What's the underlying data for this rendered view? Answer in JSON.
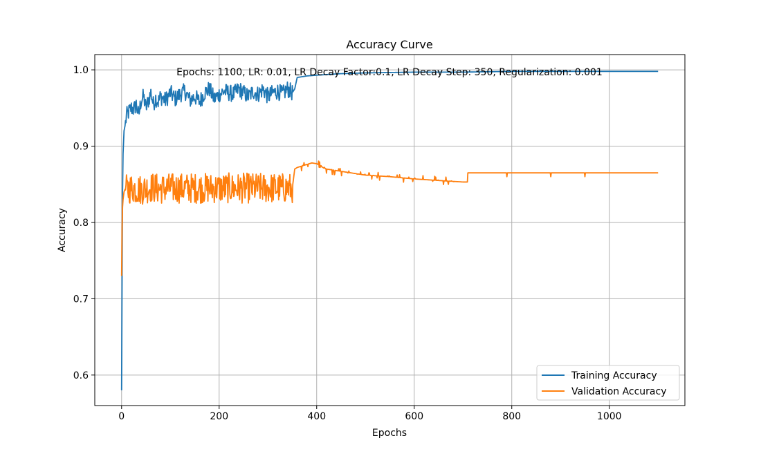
{
  "chart_data": {
    "type": "line",
    "title": "Accuracy Curve",
    "annotation": "Epochs: 1100, LR: 0.01, LR Decay Factor:0.1, LR Decay Step: 350, Regularization: 0.001",
    "xlabel": "Epochs",
    "ylabel": "Accuracy",
    "xlim": [
      -55,
      1155
    ],
    "ylim": [
      0.56,
      1.02
    ],
    "xticks": [
      0,
      200,
      400,
      600,
      800,
      1000
    ],
    "yticks": [
      0.6,
      0.7,
      0.8,
      0.9,
      1.0
    ],
    "xtick_labels": [
      "0",
      "200",
      "400",
      "600",
      "800",
      "1000"
    ],
    "ytick_labels": [
      "0.6",
      "0.7",
      "0.8",
      "0.9",
      "1.0"
    ],
    "grid": true,
    "legend_position": "lower-right",
    "series": [
      {
        "name": "Training Accuracy",
        "color": "#1f77b4",
        "x": [
          0,
          1,
          2,
          3,
          5,
          8,
          10,
          15,
          20,
          25,
          30,
          35,
          40,
          45,
          50,
          55,
          60,
          65,
          70,
          75,
          80,
          90,
          100,
          110,
          120,
          130,
          140,
          150,
          160,
          170,
          180,
          190,
          200,
          210,
          220,
          230,
          240,
          250,
          260,
          270,
          280,
          290,
          300,
          310,
          320,
          330,
          340,
          350,
          355,
          360,
          380,
          400,
          450,
          500,
          600,
          700,
          800,
          900,
          1000,
          1100
        ],
        "values": [
          0.58,
          0.73,
          0.84,
          0.89,
          0.92,
          0.93,
          0.94,
          0.945,
          0.95,
          0.948,
          0.955,
          0.94,
          0.96,
          0.965,
          0.95,
          0.96,
          0.97,
          0.955,
          0.963,
          0.958,
          0.965,
          0.96,
          0.97,
          0.962,
          0.968,
          0.972,
          0.96,
          0.965,
          0.958,
          0.97,
          0.975,
          0.962,
          0.968,
          0.972,
          0.97,
          0.968,
          0.975,
          0.97,
          0.965,
          0.972,
          0.968,
          0.975,
          0.965,
          0.97,
          0.972,
          0.968,
          0.975,
          0.97,
          0.975,
          0.99,
          0.992,
          0.993,
          0.995,
          0.996,
          0.997,
          0.997,
          0.998,
          0.998,
          0.998,
          0.998
        ],
        "noise_amplitude_until_epoch_350": 0.022
      },
      {
        "name": "Validation Accuracy",
        "color": "#ff7f0e",
        "x": [
          0,
          1,
          2,
          3,
          5,
          8,
          10,
          20,
          40,
          60,
          80,
          100,
          150,
          200,
          250,
          300,
          350,
          355,
          360,
          370,
          380,
          390,
          400,
          410,
          420,
          440,
          460,
          480,
          500,
          550,
          600,
          650,
          700,
          709,
          710,
          800,
          900,
          1000,
          1100
        ],
        "values": [
          0.73,
          0.79,
          0.82,
          0.83,
          0.84,
          0.845,
          0.843,
          0.845,
          0.843,
          0.846,
          0.844,
          0.845,
          0.845,
          0.845,
          0.845,
          0.845,
          0.845,
          0.87,
          0.872,
          0.874,
          0.876,
          0.878,
          0.877,
          0.873,
          0.87,
          0.868,
          0.866,
          0.864,
          0.862,
          0.86,
          0.857,
          0.855,
          0.853,
          0.853,
          0.865,
          0.865,
          0.865,
          0.865,
          0.865
        ],
        "noise_amplitude_until_epoch_350": 0.04
      }
    ]
  }
}
